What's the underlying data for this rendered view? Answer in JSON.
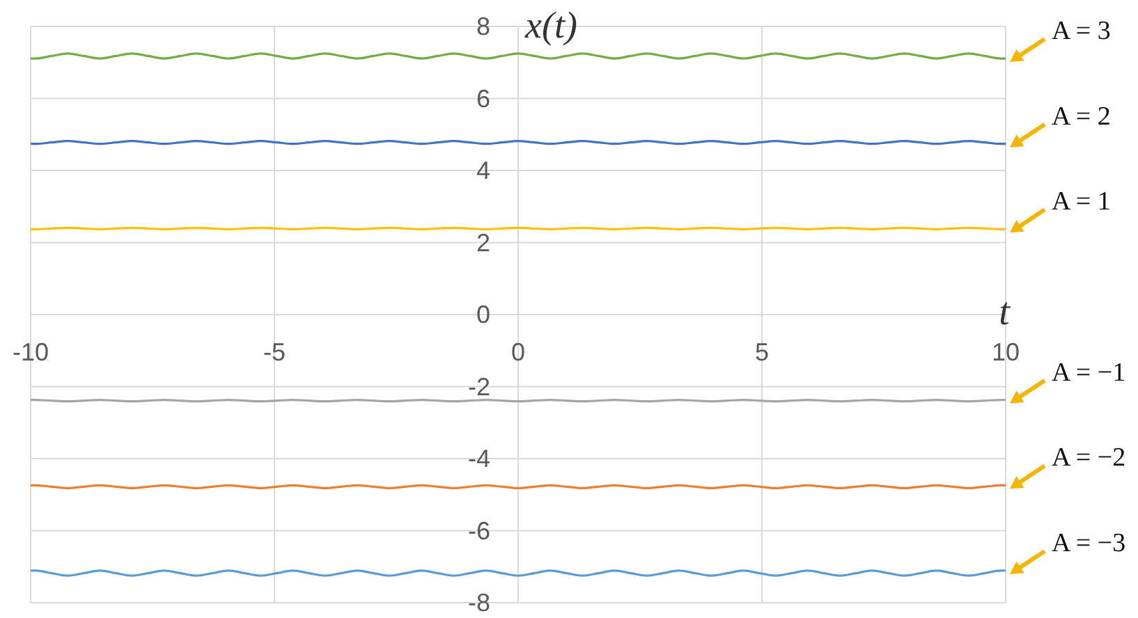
{
  "chart_data": {
    "type": "line",
    "xlabel": "t",
    "ylabel": "x(t)",
    "x": [
      -10,
      -9.9,
      -9.57,
      -9.24,
      -8.91,
      -8.58,
      -8.25,
      -7.92,
      -7.59,
      -7.26,
      -6.93,
      -6.6,
      -6.27,
      -5.94,
      -5.61,
      -5.28,
      -4.95,
      -4.62,
      -4.29,
      -3.96,
      -3.63,
      -3.3,
      -2.97,
      -2.64,
      -2.31,
      -1.98,
      -1.65,
      -1.32,
      -0.99,
      -0.66,
      -0.33,
      0,
      0.33,
      0.66,
      0.99,
      1.32,
      1.65,
      1.98,
      2.31,
      2.64,
      2.97,
      3.3,
      3.63,
      3.96,
      4.29,
      4.62,
      4.95,
      5.28,
      5.61,
      5.94,
      6.27,
      6.6,
      6.93,
      7.26,
      7.59,
      7.92,
      8.25,
      8.58,
      8.91,
      9.24,
      9.57,
      9.9,
      10
    ],
    "series": [
      {
        "name": "A = 3",
        "color": "#70ad47",
        "values": [
          7.11,
          7.11,
          7.18,
          7.25,
          7.18,
          7.11,
          7.18,
          7.25,
          7.18,
          7.11,
          7.18,
          7.25,
          7.18,
          7.11,
          7.18,
          7.25,
          7.18,
          7.11,
          7.18,
          7.25,
          7.18,
          7.11,
          7.18,
          7.25,
          7.18,
          7.11,
          7.18,
          7.25,
          7.18,
          7.11,
          7.18,
          7.25,
          7.18,
          7.11,
          7.18,
          7.25,
          7.18,
          7.11,
          7.18,
          7.25,
          7.18,
          7.11,
          7.18,
          7.25,
          7.18,
          7.11,
          7.18,
          7.25,
          7.18,
          7.11,
          7.18,
          7.25,
          7.18,
          7.11,
          7.18,
          7.25,
          7.18,
          7.11,
          7.18,
          7.25,
          7.18,
          7.11,
          7.11
        ]
      },
      {
        "name": "A = 2",
        "color": "#4472c4",
        "values": [
          4.74,
          4.74,
          4.78,
          4.82,
          4.78,
          4.74,
          4.78,
          4.82,
          4.78,
          4.74,
          4.78,
          4.82,
          4.78,
          4.74,
          4.78,
          4.82,
          4.78,
          4.74,
          4.78,
          4.82,
          4.78,
          4.74,
          4.78,
          4.82,
          4.78,
          4.74,
          4.78,
          4.82,
          4.78,
          4.74,
          4.78,
          4.82,
          4.78,
          4.74,
          4.78,
          4.82,
          4.78,
          4.74,
          4.78,
          4.82,
          4.78,
          4.74,
          4.78,
          4.82,
          4.78,
          4.74,
          4.78,
          4.82,
          4.78,
          4.74,
          4.78,
          4.82,
          4.78,
          4.74,
          4.78,
          4.82,
          4.78,
          4.74,
          4.78,
          4.82,
          4.78,
          4.74,
          4.74
        ]
      },
      {
        "name": "A = 1",
        "color": "#ffc000",
        "values": [
          2.37,
          2.37,
          2.39,
          2.41,
          2.39,
          2.37,
          2.39,
          2.41,
          2.39,
          2.37,
          2.39,
          2.41,
          2.39,
          2.37,
          2.39,
          2.41,
          2.39,
          2.37,
          2.39,
          2.41,
          2.39,
          2.37,
          2.39,
          2.41,
          2.39,
          2.37,
          2.39,
          2.41,
          2.39,
          2.37,
          2.39,
          2.41,
          2.39,
          2.37,
          2.39,
          2.41,
          2.39,
          2.37,
          2.39,
          2.41,
          2.39,
          2.37,
          2.39,
          2.41,
          2.39,
          2.37,
          2.39,
          2.41,
          2.39,
          2.37,
          2.39,
          2.41,
          2.39,
          2.37,
          2.39,
          2.41,
          2.39,
          2.37,
          2.39,
          2.41,
          2.39,
          2.37,
          2.37
        ]
      },
      {
        "name": "A = −1",
        "color": "#a5a5a5",
        "values": [
          -2.37,
          -2.37,
          -2.39,
          -2.41,
          -2.39,
          -2.37,
          -2.39,
          -2.41,
          -2.39,
          -2.37,
          -2.39,
          -2.41,
          -2.39,
          -2.37,
          -2.39,
          -2.41,
          -2.39,
          -2.37,
          -2.39,
          -2.41,
          -2.39,
          -2.37,
          -2.39,
          -2.41,
          -2.39,
          -2.37,
          -2.39,
          -2.41,
          -2.39,
          -2.37,
          -2.39,
          -2.41,
          -2.39,
          -2.37,
          -2.39,
          -2.41,
          -2.39,
          -2.37,
          -2.39,
          -2.41,
          -2.39,
          -2.37,
          -2.39,
          -2.41,
          -2.39,
          -2.37,
          -2.39,
          -2.41,
          -2.39,
          -2.37,
          -2.39,
          -2.41,
          -2.39,
          -2.37,
          -2.39,
          -2.41,
          -2.39,
          -2.37,
          -2.39,
          -2.41,
          -2.39,
          -2.37,
          -2.37
        ]
      },
      {
        "name": "A = −2",
        "color": "#ed7d31",
        "values": [
          -4.74,
          -4.74,
          -4.78,
          -4.82,
          -4.78,
          -4.74,
          -4.78,
          -4.82,
          -4.78,
          -4.74,
          -4.78,
          -4.82,
          -4.78,
          -4.74,
          -4.78,
          -4.82,
          -4.78,
          -4.74,
          -4.78,
          -4.82,
          -4.78,
          -4.74,
          -4.78,
          -4.82,
          -4.78,
          -4.74,
          -4.78,
          -4.82,
          -4.78,
          -4.74,
          -4.78,
          -4.82,
          -4.78,
          -4.74,
          -4.78,
          -4.82,
          -4.78,
          -4.74,
          -4.78,
          -4.82,
          -4.78,
          -4.74,
          -4.78,
          -4.82,
          -4.78,
          -4.74,
          -4.78,
          -4.82,
          -4.78,
          -4.74,
          -4.78,
          -4.82,
          -4.78,
          -4.74,
          -4.78,
          -4.82,
          -4.78,
          -4.74,
          -4.78,
          -4.82,
          -4.78,
          -4.74,
          -4.74
        ]
      },
      {
        "name": "A = −3",
        "color": "#5b9bd5",
        "values": [
          -7.11,
          -7.11,
          -7.18,
          -7.25,
          -7.18,
          -7.11,
          -7.18,
          -7.25,
          -7.18,
          -7.11,
          -7.18,
          -7.25,
          -7.18,
          -7.11,
          -7.18,
          -7.25,
          -7.18,
          -7.11,
          -7.18,
          -7.25,
          -7.18,
          -7.11,
          -7.18,
          -7.25,
          -7.18,
          -7.11,
          -7.18,
          -7.25,
          -7.18,
          -7.11,
          -7.18,
          -7.25,
          -7.18,
          -7.11,
          -7.18,
          -7.25,
          -7.18,
          -7.11,
          -7.18,
          -7.25,
          -7.18,
          -7.11,
          -7.18,
          -7.25,
          -7.18,
          -7.11,
          -7.18,
          -7.25,
          -7.18,
          -7.11,
          -7.18,
          -7.25,
          -7.18,
          -7.11,
          -7.18,
          -7.25,
          -7.18,
          -7.11,
          -7.18,
          -7.25,
          -7.18,
          -7.11,
          -7.11
        ]
      }
    ],
    "xlim": [
      -10,
      10
    ],
    "xticks": [
      -10,
      -5,
      0,
      5,
      10
    ],
    "ylim": [
      -8,
      8
    ],
    "yticks": [
      -8,
      -6,
      -4,
      -2,
      0,
      2,
      4,
      6,
      8
    ],
    "grid": true
  }
}
